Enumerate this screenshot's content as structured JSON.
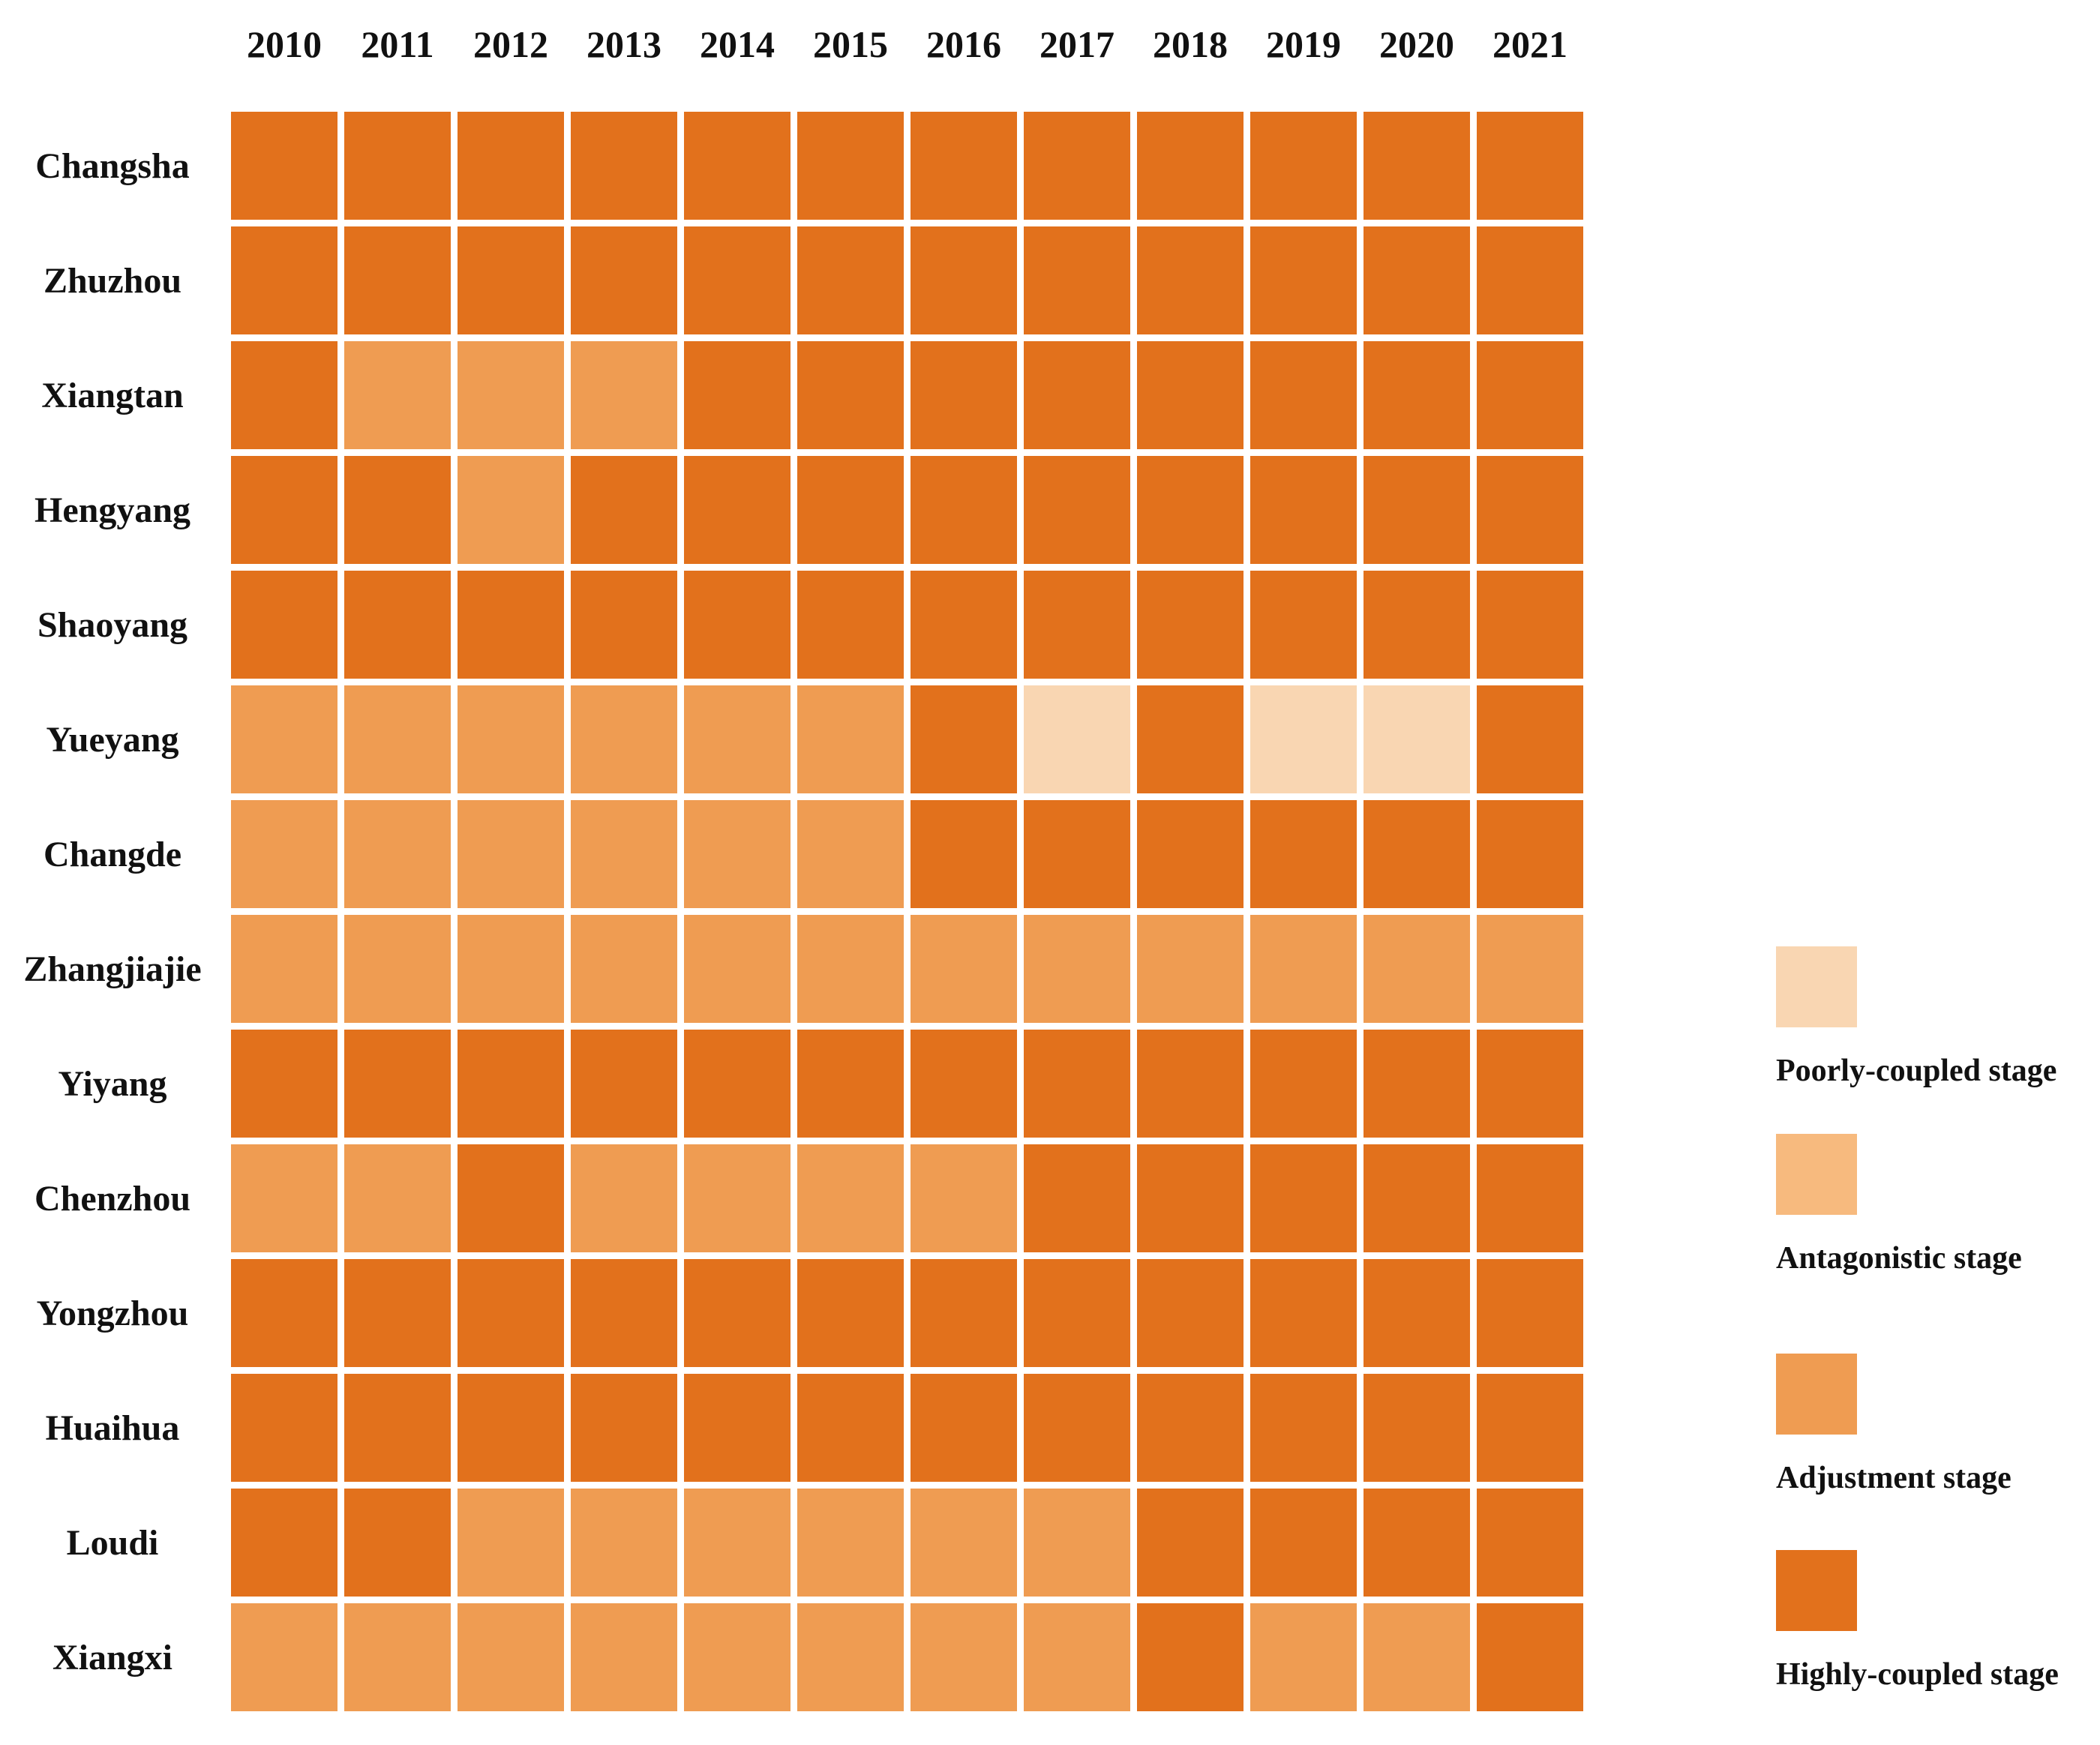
{
  "stage_colors": {
    "poorly": "#F9D6B2",
    "antagonistic": "#F7BA7E",
    "adjustment": "#EF9C52",
    "highly": "#E2711C"
  },
  "legend": [
    {
      "stage": "poorly",
      "label": "Poorly-coupled stage"
    },
    {
      "stage": "antagonistic",
      "label": "Antagonistic stage"
    },
    {
      "stage": "adjustment",
      "label": "Adjustment stage"
    },
    {
      "stage": "highly",
      "label": "Highly-coupled stage"
    }
  ],
  "chart_data": {
    "type": "heatmap",
    "x_labels": [
      "2010",
      "2011",
      "2012",
      "2013",
      "2014",
      "2015",
      "2016",
      "2017",
      "2018",
      "2019",
      "2020",
      "2021"
    ],
    "y_labels": [
      "Changsha",
      "Zhuzhou",
      "Xiangtan",
      "Hengyang",
      "Shaoyang",
      "Yueyang",
      "Changde",
      "Zhangjiajie",
      "Yiyang",
      "Chenzhou",
      "Yongzhou",
      "Huaihua",
      "Loudi",
      "Xiangxi"
    ],
    "value_legend": "cell value = coupling stage category",
    "rows": [
      {
        "city": "Changsha",
        "stages": [
          "highly",
          "highly",
          "highly",
          "highly",
          "highly",
          "highly",
          "highly",
          "highly",
          "highly",
          "highly",
          "highly",
          "highly"
        ]
      },
      {
        "city": "Zhuzhou",
        "stages": [
          "highly",
          "highly",
          "highly",
          "highly",
          "highly",
          "highly",
          "highly",
          "highly",
          "highly",
          "highly",
          "highly",
          "highly"
        ]
      },
      {
        "city": "Xiangtan",
        "stages": [
          "highly",
          "adjustment",
          "adjustment",
          "adjustment",
          "highly",
          "highly",
          "highly",
          "highly",
          "highly",
          "highly",
          "highly",
          "highly"
        ]
      },
      {
        "city": "Hengyang",
        "stages": [
          "highly",
          "highly",
          "adjustment",
          "highly",
          "highly",
          "highly",
          "highly",
          "highly",
          "highly",
          "highly",
          "highly",
          "highly"
        ]
      },
      {
        "city": "Shaoyang",
        "stages": [
          "highly",
          "highly",
          "highly",
          "highly",
          "highly",
          "highly",
          "highly",
          "highly",
          "highly",
          "highly",
          "highly",
          "highly"
        ]
      },
      {
        "city": "Yueyang",
        "stages": [
          "adjustment",
          "adjustment",
          "adjustment",
          "adjustment",
          "adjustment",
          "adjustment",
          "highly",
          "poorly",
          "highly",
          "poorly",
          "poorly",
          "highly"
        ]
      },
      {
        "city": "Changde",
        "stages": [
          "adjustment",
          "adjustment",
          "adjustment",
          "adjustment",
          "adjustment",
          "adjustment",
          "highly",
          "highly",
          "highly",
          "highly",
          "highly",
          "highly"
        ]
      },
      {
        "city": "Zhangjiajie",
        "stages": [
          "adjustment",
          "adjustment",
          "adjustment",
          "adjustment",
          "adjustment",
          "adjustment",
          "adjustment",
          "adjustment",
          "adjustment",
          "adjustment",
          "adjustment",
          "adjustment"
        ]
      },
      {
        "city": "Yiyang",
        "stages": [
          "highly",
          "highly",
          "highly",
          "highly",
          "highly",
          "highly",
          "highly",
          "highly",
          "highly",
          "highly",
          "highly",
          "highly"
        ]
      },
      {
        "city": "Chenzhou",
        "stages": [
          "adjustment",
          "adjustment",
          "highly",
          "adjustment",
          "adjustment",
          "adjustment",
          "adjustment",
          "highly",
          "highly",
          "highly",
          "highly",
          "highly"
        ]
      },
      {
        "city": "Yongzhou",
        "stages": [
          "highly",
          "highly",
          "highly",
          "highly",
          "highly",
          "highly",
          "highly",
          "highly",
          "highly",
          "highly",
          "highly",
          "highly"
        ]
      },
      {
        "city": "Huaihua",
        "stages": [
          "highly",
          "highly",
          "highly",
          "highly",
          "highly",
          "highly",
          "highly",
          "highly",
          "highly",
          "highly",
          "highly",
          "highly"
        ]
      },
      {
        "city": "Loudi",
        "stages": [
          "highly",
          "highly",
          "adjustment",
          "adjustment",
          "adjustment",
          "adjustment",
          "adjustment",
          "adjustment",
          "highly",
          "highly",
          "highly",
          "highly"
        ]
      },
      {
        "city": "Xiangxi",
        "stages": [
          "adjustment",
          "adjustment",
          "adjustment",
          "adjustment",
          "adjustment",
          "adjustment",
          "adjustment",
          "adjustment",
          "highly",
          "adjustment",
          "adjustment",
          "highly"
        ]
      }
    ]
  }
}
